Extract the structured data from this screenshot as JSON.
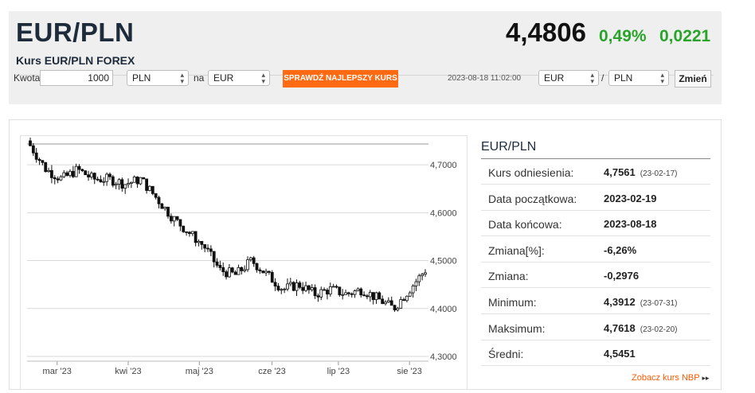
{
  "header": {
    "title": "EUR/PLN",
    "subtitle": "Kurs EUR/PLN FOREX",
    "rate": "4,4806",
    "change_pct": "0,49%",
    "change_abs": "0,0221"
  },
  "converter": {
    "amount_label": "Kwota",
    "amount_value": "1000",
    "from_currency": "PLN",
    "na_label": "na",
    "to_currency": "EUR",
    "best_rate_button": "SPRAWDŹ NAJLEPSZY KURS",
    "timestamp": "2023-08-18 11:02:00",
    "base_select": "EUR",
    "slash": "/",
    "quote_select": "PLN",
    "change_button": "Zmień"
  },
  "colors": {
    "accent_orange": "#ff6a13",
    "positive_green": "#2aa32a",
    "title_navy": "#1d2b3a"
  },
  "stats": {
    "title": "EUR/PLN",
    "rows": [
      {
        "label": "Kurs odniesienia:",
        "value": "4,7561",
        "date": "(23-02-17)"
      },
      {
        "label": "Data początkowa:",
        "value": "2023-02-19",
        "date": ""
      },
      {
        "label": "Data końcowa:",
        "value": "2023-08-18",
        "date": ""
      },
      {
        "label": "Zmiana[%]:",
        "value": "-6,26%",
        "date": ""
      },
      {
        "label": "Zmiana:",
        "value": "-0,2976",
        "date": ""
      },
      {
        "label": "Minimum:",
        "value": "4,3912",
        "date": "(23-07-31)"
      },
      {
        "label": "Maksimum:",
        "value": "4,7618",
        "date": "(23-02-20)"
      },
      {
        "label": "Średni:",
        "value": "4,5451",
        "date": ""
      }
    ],
    "nbp_link": "Zobacz kurs NBP",
    "nbp_arrow": "▸▸"
  },
  "chart_data": {
    "type": "candlestick",
    "title": "",
    "xlabel": "",
    "ylabel": "",
    "ylim": [
      4.3,
      4.75
    ],
    "yticks": [
      "4,7000",
      "4,6000",
      "4,5000",
      "4,4000",
      "4,3000"
    ],
    "ytick_values": [
      4.7,
      4.6,
      4.5,
      4.4,
      4.3
    ],
    "xticks": [
      "mar '23",
      "kwi '23",
      "maj '23",
      "cze '23",
      "lip '23",
      "sie '23"
    ],
    "xtick_weeks": [
      1.7,
      6.2,
      10.7,
      15.3,
      19.5,
      24
    ],
    "grid": true,
    "weekly_close": [
      4.74,
      4.69,
      4.67,
      4.69,
      4.67,
      4.67,
      4.66,
      4.67,
      4.63,
      4.59,
      4.56,
      4.53,
      4.48,
      4.47,
      4.5,
      4.47,
      4.44,
      4.45,
      4.43,
      4.44,
      4.43,
      4.44,
      4.42,
      4.4,
      4.44,
      4.48
    ],
    "weekly_low": [
      4.73,
      4.64,
      4.66,
      4.68,
      4.66,
      4.66,
      4.64,
      4.61,
      4.59,
      4.55,
      4.52,
      4.46,
      4.45,
      4.46,
      4.46,
      4.42,
      4.41,
      4.41,
      4.4,
      4.41,
      4.41,
      4.41,
      4.4,
      4.39,
      4.42,
      4.43
    ],
    "weekly_high": [
      4.76,
      4.7,
      4.71,
      4.7,
      4.68,
      4.68,
      4.68,
      4.67,
      4.64,
      4.59,
      4.56,
      4.53,
      4.53,
      4.53,
      4.51,
      4.48,
      4.47,
      4.49,
      4.46,
      4.45,
      4.44,
      4.44,
      4.43,
      4.45,
      4.48,
      4.49
    ]
  }
}
